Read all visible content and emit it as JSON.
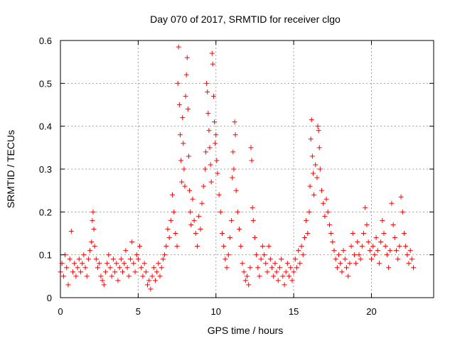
{
  "chart_data": {
    "type": "scatter",
    "title": "Day 070 of 2017, SRMTID for receiver clgo",
    "xlabel": "GPS time / hours",
    "ylabel": "SRMTID / TECUs",
    "xlim": [
      0,
      24
    ],
    "ylim": [
      0,
      0.6
    ],
    "xticks": [
      0,
      5,
      10,
      15,
      20
    ],
    "yticks": [
      0,
      0.1,
      0.2,
      0.3,
      0.4,
      0.5,
      0.6
    ],
    "xtick_labels": [
      "0",
      "5",
      "10",
      "15",
      "20"
    ],
    "ytick_labels": [
      "0",
      "0.1",
      "0.2",
      "0.3",
      "0.4",
      "0.5",
      "0.6"
    ],
    "grid": true,
    "marker": "+",
    "color": "#ff0000",
    "series": [
      {
        "name": "SRMTID",
        "points": [
          [
            0.0,
            0.06
          ],
          [
            0.1,
            0.08
          ],
          [
            0.2,
            0.05
          ],
          [
            0.3,
            0.1
          ],
          [
            0.4,
            0.07
          ],
          [
            0.5,
            0.03
          ],
          [
            0.6,
            0.09
          ],
          [
            0.7,
            0.155
          ],
          [
            0.8,
            0.06
          ],
          [
            0.9,
            0.08
          ],
          [
            1.0,
            0.05
          ],
          [
            1.1,
            0.07
          ],
          [
            1.2,
            0.09
          ],
          [
            1.3,
            0.06
          ],
          [
            1.4,
            0.08
          ],
          [
            1.5,
            0.1
          ],
          [
            1.6,
            0.07
          ],
          [
            1.7,
            0.05
          ],
          [
            1.8,
            0.09
          ],
          [
            1.9,
            0.11
          ],
          [
            2.0,
            0.13
          ],
          [
            2.05,
            0.18
          ],
          [
            2.1,
            0.2
          ],
          [
            2.15,
            0.16
          ],
          [
            2.2,
            0.12
          ],
          [
            2.3,
            0.09
          ],
          [
            2.4,
            0.07
          ],
          [
            2.5,
            0.08
          ],
          [
            2.6,
            0.05
          ],
          [
            2.7,
            0.04
          ],
          [
            2.8,
            0.03
          ],
          [
            2.9,
            0.06
          ],
          [
            3.0,
            0.08
          ],
          [
            3.1,
            0.1
          ],
          [
            3.2,
            0.07
          ],
          [
            3.3,
            0.05
          ],
          [
            3.4,
            0.09
          ],
          [
            3.5,
            0.06
          ],
          [
            3.6,
            0.08
          ],
          [
            3.7,
            0.04
          ],
          [
            3.8,
            0.07
          ],
          [
            3.9,
            0.09
          ],
          [
            4.0,
            0.06
          ],
          [
            4.1,
            0.08
          ],
          [
            4.2,
            0.11
          ],
          [
            4.3,
            0.07
          ],
          [
            4.4,
            0.05
          ],
          [
            4.5,
            0.09
          ],
          [
            4.6,
            0.13
          ],
          [
            4.7,
            0.08
          ],
          [
            4.8,
            0.06
          ],
          [
            4.9,
            0.1
          ],
          [
            5.0,
            0.09
          ],
          [
            5.1,
            0.12
          ],
          [
            5.2,
            0.07
          ],
          [
            5.3,
            0.05
          ],
          [
            5.4,
            0.08
          ],
          [
            5.5,
            0.06
          ],
          [
            5.6,
            0.03
          ],
          [
            5.7,
            0.04
          ],
          [
            5.8,
            0.02
          ],
          [
            5.9,
            0.05
          ],
          [
            6.0,
            0.07
          ],
          [
            6.1,
            0.04
          ],
          [
            6.2,
            0.06
          ],
          [
            6.3,
            0.08
          ],
          [
            6.4,
            0.05
          ],
          [
            6.5,
            0.07
          ],
          [
            6.6,
            0.09
          ],
          [
            6.7,
            0.1
          ],
          [
            6.8,
            0.12
          ],
          [
            6.9,
            0.16
          ],
          [
            7.0,
            0.14
          ],
          [
            7.1,
            0.18
          ],
          [
            7.2,
            0.24
          ],
          [
            7.3,
            0.2
          ],
          [
            7.4,
            0.15
          ],
          [
            7.5,
            0.12
          ],
          [
            7.55,
            0.5
          ],
          [
            7.6,
            0.585
          ],
          [
            7.65,
            0.45
          ],
          [
            7.7,
            0.38
          ],
          [
            7.75,
            0.32
          ],
          [
            7.8,
            0.27
          ],
          [
            7.85,
            0.42
          ],
          [
            7.9,
            0.36
          ],
          [
            7.95,
            0.3
          ],
          [
            8.0,
            0.26
          ],
          [
            8.05,
            0.47
          ],
          [
            8.1,
            0.52
          ],
          [
            8.15,
            0.56
          ],
          [
            8.2,
            0.44
          ],
          [
            8.25,
            0.33
          ],
          [
            8.3,
            0.25
          ],
          [
            8.35,
            0.2
          ],
          [
            8.4,
            0.17
          ],
          [
            8.5,
            0.23
          ],
          [
            8.6,
            0.18
          ],
          [
            8.7,
            0.15
          ],
          [
            8.8,
            0.12
          ],
          [
            8.9,
            0.19
          ],
          [
            9.0,
            0.16
          ],
          [
            9.1,
            0.22
          ],
          [
            9.2,
            0.26
          ],
          [
            9.3,
            0.3
          ],
          [
            9.35,
            0.34
          ],
          [
            9.4,
            0.5
          ],
          [
            9.45,
            0.48
          ],
          [
            9.5,
            0.43
          ],
          [
            9.55,
            0.39
          ],
          [
            9.6,
            0.35
          ],
          [
            9.65,
            0.31
          ],
          [
            9.7,
            0.27
          ],
          [
            9.75,
            0.57
          ],
          [
            9.8,
            0.545
          ],
          [
            9.85,
            0.47
          ],
          [
            9.9,
            0.41
          ],
          [
            9.95,
            0.36
          ],
          [
            10.0,
            0.38
          ],
          [
            10.05,
            0.32
          ],
          [
            10.1,
            0.29
          ],
          [
            10.2,
            0.24
          ],
          [
            10.3,
            0.2
          ],
          [
            10.4,
            0.15
          ],
          [
            10.5,
            0.12
          ],
          [
            10.6,
            0.09
          ],
          [
            10.7,
            0.07
          ],
          [
            10.8,
            0.1
          ],
          [
            10.9,
            0.14
          ],
          [
            11.0,
            0.18
          ],
          [
            11.05,
            0.28
          ],
          [
            11.1,
            0.34
          ],
          [
            11.15,
            0.3
          ],
          [
            11.2,
            0.41
          ],
          [
            11.25,
            0.38
          ],
          [
            11.3,
            0.25
          ],
          [
            11.4,
            0.2
          ],
          [
            11.5,
            0.16
          ],
          [
            11.6,
            0.12
          ],
          [
            11.7,
            0.08
          ],
          [
            11.8,
            0.06
          ],
          [
            11.9,
            0.04
          ],
          [
            12.0,
            0.05
          ],
          [
            12.1,
            0.03
          ],
          [
            12.2,
            0.07
          ],
          [
            12.25,
            0.35
          ],
          [
            12.3,
            0.32
          ],
          [
            12.35,
            0.21
          ],
          [
            12.4,
            0.18
          ],
          [
            12.5,
            0.14
          ],
          [
            12.6,
            0.1
          ],
          [
            12.7,
            0.07
          ],
          [
            12.8,
            0.05
          ],
          [
            12.9,
            0.09
          ],
          [
            13.0,
            0.12
          ],
          [
            13.1,
            0.1
          ],
          [
            13.2,
            0.08
          ],
          [
            13.3,
            0.06
          ],
          [
            13.4,
            0.12
          ],
          [
            13.5,
            0.09
          ],
          [
            13.6,
            0.07
          ],
          [
            13.7,
            0.05
          ],
          [
            13.8,
            0.08
          ],
          [
            13.9,
            0.06
          ],
          [
            14.0,
            0.04
          ],
          [
            14.1,
            0.07
          ],
          [
            14.2,
            0.09
          ],
          [
            14.3,
            0.05
          ],
          [
            14.4,
            0.03
          ],
          [
            14.5,
            0.06
          ],
          [
            14.6,
            0.08
          ],
          [
            14.7,
            0.05
          ],
          [
            14.8,
            0.07
          ],
          [
            14.9,
            0.04
          ],
          [
            15.0,
            0.06
          ],
          [
            15.1,
            0.09
          ],
          [
            15.2,
            0.07
          ],
          [
            15.3,
            0.11
          ],
          [
            15.4,
            0.08
          ],
          [
            15.5,
            0.12
          ],
          [
            15.6,
            0.1
          ],
          [
            15.7,
            0.14
          ],
          [
            15.8,
            0.18
          ],
          [
            15.9,
            0.15
          ],
          [
            16.0,
            0.2
          ],
          [
            16.05,
            0.26
          ],
          [
            16.1,
            0.37
          ],
          [
            16.15,
            0.415
          ],
          [
            16.2,
            0.33
          ],
          [
            16.25,
            0.29
          ],
          [
            16.3,
            0.24
          ],
          [
            16.4,
            0.31
          ],
          [
            16.5,
            0.28
          ],
          [
            16.55,
            0.4
          ],
          [
            16.6,
            0.39
          ],
          [
            16.65,
            0.35
          ],
          [
            16.7,
            0.3
          ],
          [
            16.8,
            0.25
          ],
          [
            16.9,
            0.22
          ],
          [
            17.0,
            0.19
          ],
          [
            17.1,
            0.23
          ],
          [
            17.2,
            0.2
          ],
          [
            17.3,
            0.17
          ],
          [
            17.4,
            0.15
          ],
          [
            17.5,
            0.13
          ],
          [
            17.6,
            0.11
          ],
          [
            17.7,
            0.09
          ],
          [
            17.8,
            0.07
          ],
          [
            17.9,
            0.1
          ],
          [
            18.0,
            0.08
          ],
          [
            18.1,
            0.06
          ],
          [
            18.2,
            0.11
          ],
          [
            18.3,
            0.09
          ],
          [
            18.4,
            0.07
          ],
          [
            18.5,
            0.05
          ],
          [
            18.6,
            0.08
          ],
          [
            18.7,
            0.12
          ],
          [
            18.8,
            0.15
          ],
          [
            18.9,
            0.1
          ],
          [
            19.0,
            0.08
          ],
          [
            19.1,
            0.13
          ],
          [
            19.2,
            0.1
          ],
          [
            19.3,
            0.09
          ],
          [
            19.4,
            0.12
          ],
          [
            19.5,
            0.15
          ],
          [
            19.6,
            0.21
          ],
          [
            19.7,
            0.17
          ],
          [
            19.8,
            0.13
          ],
          [
            19.9,
            0.11
          ],
          [
            20.0,
            0.09
          ],
          [
            20.1,
            0.12
          ],
          [
            20.2,
            0.1
          ],
          [
            20.3,
            0.14
          ],
          [
            20.4,
            0.11
          ],
          [
            20.5,
            0.08
          ],
          [
            20.6,
            0.13
          ],
          [
            20.7,
            0.18
          ],
          [
            20.8,
            0.15
          ],
          [
            20.9,
            0.12
          ],
          [
            21.0,
            0.1
          ],
          [
            21.1,
            0.07
          ],
          [
            21.2,
            0.11
          ],
          [
            21.3,
            0.22
          ],
          [
            21.4,
            0.17
          ],
          [
            21.5,
            0.14
          ],
          [
            21.6,
            0.11
          ],
          [
            21.7,
            0.09
          ],
          [
            21.8,
            0.12
          ],
          [
            21.9,
            0.235
          ],
          [
            22.0,
            0.2
          ],
          [
            22.1,
            0.15
          ],
          [
            22.2,
            0.12
          ],
          [
            22.3,
            0.1
          ],
          [
            22.4,
            0.08
          ],
          [
            22.5,
            0.11
          ],
          [
            22.6,
            0.09
          ],
          [
            22.7,
            0.07
          ]
        ]
      }
    ]
  }
}
